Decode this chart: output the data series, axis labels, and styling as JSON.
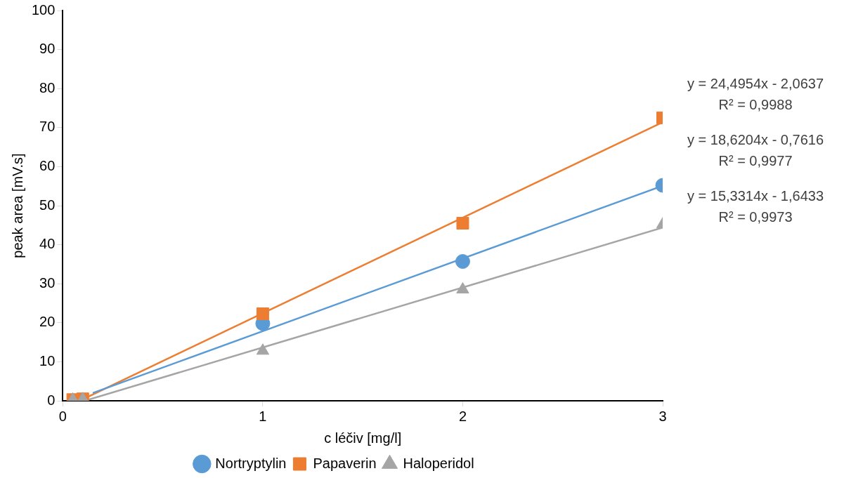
{
  "chart_data": {
    "type": "scatter",
    "xlabel": "c léčiv [mg/l]",
    "ylabel": "peak area [mV.s]",
    "xlim": [
      0,
      3
    ],
    "xticks": [
      0,
      1,
      2,
      3
    ],
    "ylim": [
      0,
      100
    ],
    "yticks": [
      0,
      10,
      20,
      30,
      40,
      50,
      60,
      70,
      80,
      90,
      100
    ],
    "grid": false,
    "legend": "bottom",
    "series": [
      {
        "name": "Nortryptylin",
        "color": "#5b9bd5",
        "marker": "circle",
        "x": [
          1,
          2,
          3
        ],
        "values": [
          19.8,
          35.7,
          55.2
        ]
      },
      {
        "name": "Papaverin",
        "color": "#ed7d31",
        "marker": "square",
        "x": [
          0.05,
          0.1,
          1,
          2,
          3
        ],
        "values": [
          0.3,
          0.5,
          22.3,
          45.5,
          72.5
        ]
      },
      {
        "name": "Haloperidol",
        "color": "#a5a5a5",
        "marker": "triangle",
        "x": [
          0.05,
          0.1,
          1,
          2,
          3
        ],
        "values": [
          0.3,
          0.4,
          12.8,
          28.5,
          45.2
        ]
      },
      {
        "type": "line",
        "color": "#5b9bd5",
        "marker": "none",
        "x": [
          0.15,
          3
        ],
        "values": [
          2.0,
          55.1
        ]
      },
      {
        "type": "line",
        "color": "#ed7d31",
        "marker": "none",
        "x": [
          0.1,
          3
        ],
        "values": [
          0.4,
          71.4
        ]
      },
      {
        "type": "line",
        "color": "#a5a5a5",
        "marker": "none",
        "x": [
          0.11,
          3
        ],
        "values": [
          0.0,
          44.4
        ]
      }
    ],
    "annotations": [
      "y = 24,4954x - 2,0637\nR² = 0,9988",
      "y = 18,6204x - 0,7616\nR² = 0,9977",
      "y = 15,3314x - 1,6433\nR² = 0,9973"
    ]
  }
}
